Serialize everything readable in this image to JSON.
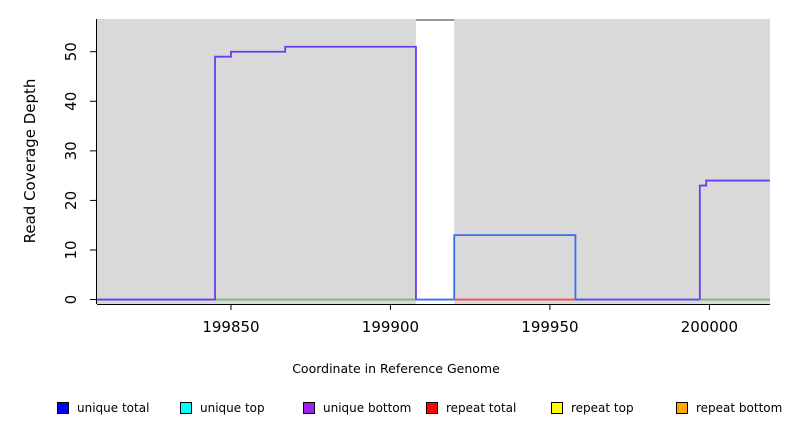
{
  "chart_data": {
    "type": "line",
    "title": "",
    "xlabel": "Coordinate in Reference Genome",
    "ylabel": "Read Coverage Depth",
    "xlim": [
      199808,
      200019
    ],
    "ylim": [
      0,
      56.6
    ],
    "xticks": [
      199850,
      199900,
      199950,
      200000
    ],
    "yticks": [
      0,
      10,
      20,
      30,
      40,
      50
    ],
    "grid": false,
    "plot_background": "#d9d9d9",
    "legend_position": "bottom",
    "coverage_gap": {
      "x_from": 199908,
      "x_to": 199920,
      "fill": "#ffffff",
      "top_border_color": "#999999"
    },
    "series": [
      {
        "name": "baseline-green-left",
        "color": "#74ba74",
        "points": [
          [
            199845,
            0
          ],
          [
            199908,
            0
          ]
        ]
      },
      {
        "name": "baseline-green-right",
        "color": "#74ba74",
        "points": [
          [
            199997,
            0
          ],
          [
            200019,
            0
          ]
        ]
      },
      {
        "name": "repeat-total-baseline",
        "color": "#f04c52",
        "points": [
          [
            199920,
            0
          ],
          [
            199958,
            0
          ]
        ]
      },
      {
        "name": "unique-total-gap-baseline",
        "color": "#3a6df0",
        "points": [
          [
            199908,
            0
          ],
          [
            199920,
            0
          ]
        ]
      },
      {
        "name": "unique-total-box",
        "color": "#3a6df0",
        "points": [
          [
            199920,
            0
          ],
          [
            199920,
            13
          ],
          [
            199958,
            13
          ],
          [
            199958,
            0
          ]
        ]
      },
      {
        "name": "unique-bottom-baseline-mid",
        "color": "#5a48f0",
        "points": [
          [
            199958,
            0
          ],
          [
            199997,
            0
          ]
        ]
      },
      {
        "name": "unique-bottom-right-step",
        "color": "#6b3bf2",
        "points": [
          [
            199997,
            0
          ],
          [
            199997,
            23
          ],
          [
            199999,
            23
          ],
          [
            199999,
            24
          ],
          [
            200019,
            24
          ]
        ]
      },
      {
        "name": "unique-bottom-main-box",
        "color": "#6b3bf2",
        "points": [
          [
            199808,
            0
          ],
          [
            199845,
            0
          ],
          [
            199845,
            49
          ],
          [
            199850,
            49
          ],
          [
            199850,
            50
          ],
          [
            199867,
            50
          ],
          [
            199867,
            51
          ],
          [
            199908,
            51
          ],
          [
            199908,
            0
          ]
        ]
      }
    ],
    "legend": [
      {
        "label": "unique total",
        "color": "#0000ff"
      },
      {
        "label": "unique top",
        "color": "#00ffff"
      },
      {
        "label": "unique bottom",
        "color": "#a020f0"
      },
      {
        "label": "repeat total",
        "color": "#ff0000"
      },
      {
        "label": "repeat top",
        "color": "#ffff00"
      },
      {
        "label": "repeat bottom",
        "color": "#ffa500"
      }
    ]
  },
  "colors": {
    "axis": "#000000",
    "tick_label": "#000000"
  }
}
